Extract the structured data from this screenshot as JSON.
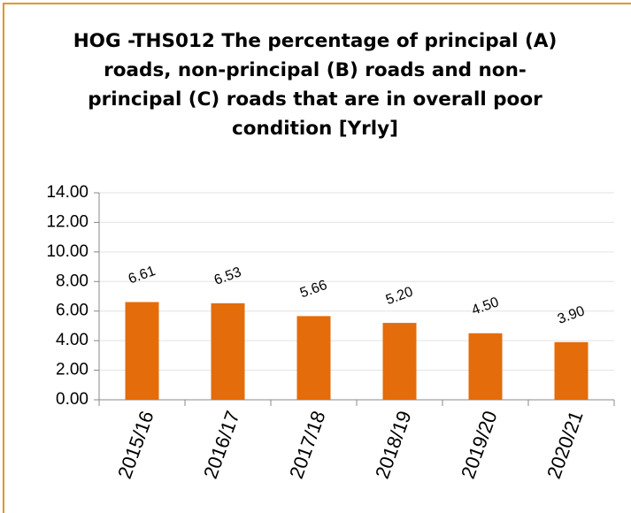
{
  "chart_data": {
    "type": "bar",
    "title": "HOG -THS012 The percentage of principal (A) roads, non-principal (B) roads and non-principal (C) roads that are in overall poor condition [Yrly]",
    "categories": [
      "2015/16",
      "2016/17",
      "2017/18",
      "2018/19",
      "2019/20",
      "2020/21"
    ],
    "values": [
      6.61,
      6.53,
      5.66,
      5.2,
      4.5,
      3.9
    ],
    "value_labels": [
      "6.61",
      "6.53",
      "5.66",
      "5.20",
      "4.50",
      "3.90"
    ],
    "color": "#e46c0a",
    "ylim": [
      0,
      14
    ],
    "yticks": [
      {
        "value": 0,
        "label": "0.00"
      },
      {
        "value": 2,
        "label": "2.00"
      },
      {
        "value": 4,
        "label": "4.00"
      },
      {
        "value": 6,
        "label": "6.00"
      },
      {
        "value": 8,
        "label": "8.00"
      },
      {
        "value": 10,
        "label": "10.00"
      },
      {
        "value": 12,
        "label": "12.00"
      },
      {
        "value": 14,
        "label": "14.00"
      }
    ],
    "grid": true
  }
}
